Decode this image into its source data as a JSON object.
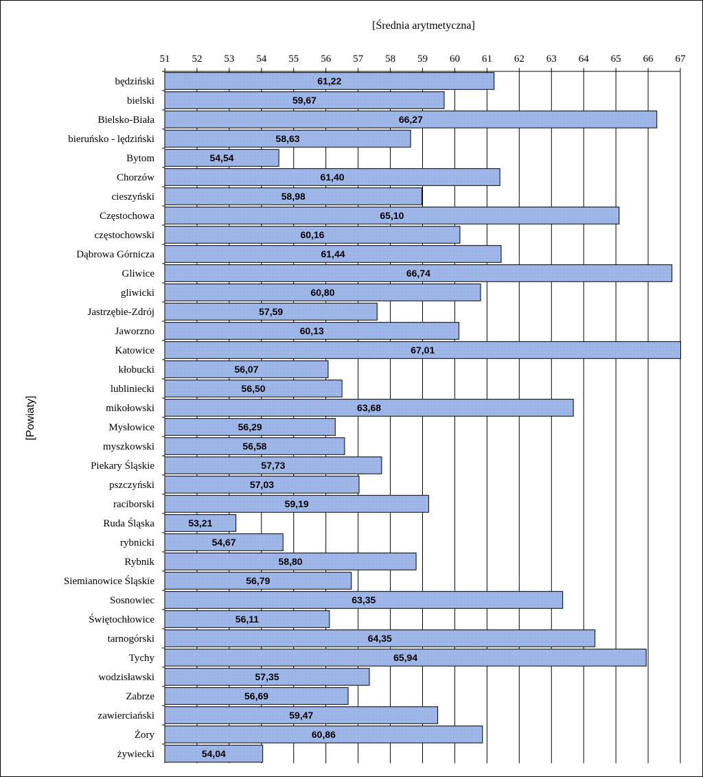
{
  "chart_data": {
    "type": "bar",
    "orientation": "horizontal",
    "xlabel": "[Średnia arytmetyczna]",
    "ylabel": "[Powiaty]",
    "xlim": [
      51,
      67
    ],
    "xticks": [
      "51",
      "52",
      "53",
      "54",
      "55",
      "56",
      "57",
      "58",
      "59",
      "60",
      "61",
      "62",
      "63",
      "64",
      "65",
      "66",
      "67"
    ],
    "x_axis_position": "top",
    "grid": "vertical",
    "bar_color": "#99B3E6",
    "categories": [
      "będziński",
      "bielski",
      "Bielsko-Biała",
      "bieruńsko - lędziński",
      "Bytom",
      "Chorzów",
      "cieszyński",
      "Częstochowa",
      "częstochowski",
      "Dąbrowa Górnicza",
      "Gliwice",
      "gliwicki",
      "Jastrzębie-Zdrój",
      "Jaworzno",
      "Katowice",
      "kłobucki",
      "lubliniecki",
      "mikołowski",
      "Mysłowice",
      "myszkowski",
      "Piekary Śląskie",
      "pszczyński",
      "raciborski",
      "Ruda Śląska",
      "rybnicki",
      "Rybnik",
      "Siemianowice Śląskie",
      "Sosnowiec",
      "Świętochłowice",
      "tarnogórski",
      "Tychy",
      "wodzisławski",
      "Zabrze",
      "zawierciański",
      "Żory",
      "żywiecki"
    ],
    "values": [
      61.22,
      59.67,
      66.27,
      58.63,
      54.54,
      61.4,
      58.98,
      65.1,
      60.16,
      61.44,
      66.74,
      60.8,
      57.59,
      60.13,
      67.01,
      56.07,
      56.5,
      63.68,
      56.29,
      56.58,
      57.73,
      57.03,
      59.19,
      53.21,
      54.67,
      58.8,
      56.79,
      63.35,
      56.11,
      64.35,
      65.94,
      57.35,
      56.69,
      59.47,
      60.86,
      54.04
    ],
    "value_labels": [
      "61,22",
      "59,67",
      "66,27",
      "58,63",
      "54,54",
      "61,40",
      "58,98",
      "65,10",
      "60,16",
      "61,44",
      "66,74",
      "60,80",
      "57,59",
      "60,13",
      "67,01",
      "56,07",
      "56,50",
      "63,68",
      "56,29",
      "56,58",
      "57,73",
      "57,03",
      "59,19",
      "53,21",
      "54,67",
      "58,80",
      "56,79",
      "63,35",
      "56,11",
      "64,35",
      "65,94",
      "57,35",
      "56,69",
      "59,47",
      "60,86",
      "54,04"
    ]
  }
}
